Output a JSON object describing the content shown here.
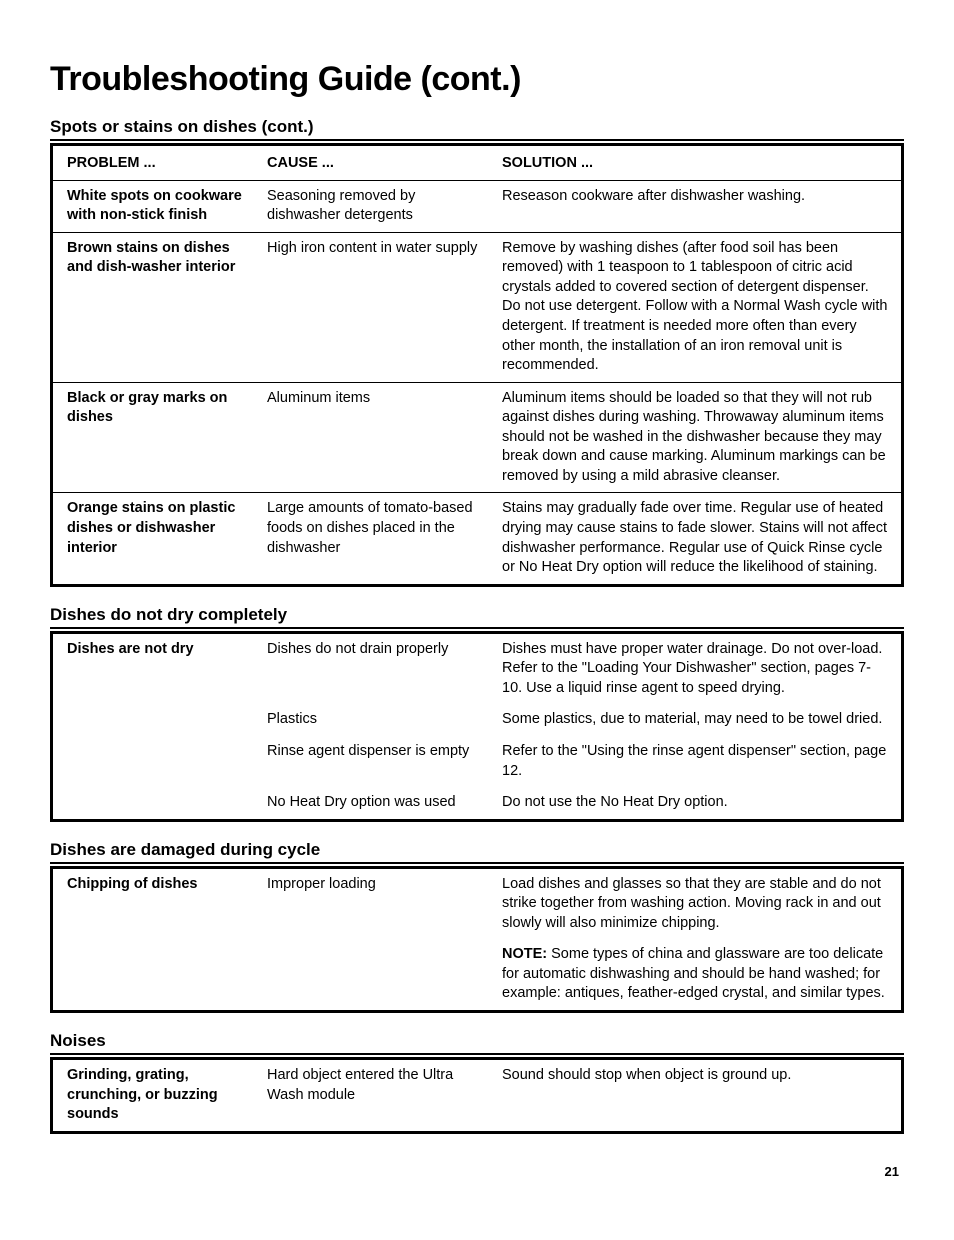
{
  "page": {
    "title": "Troubleshooting Guide (cont.)",
    "page_number": "21",
    "colors": {
      "text": "#000000",
      "background": "#ffffff",
      "border": "#000000"
    },
    "typography": {
      "title_size_pt": 34,
      "section_size_pt": 17,
      "body_size_pt": 14.5,
      "font_family": "Arial"
    }
  },
  "sections": {
    "spots": {
      "heading": "Spots or stains on dishes (cont.)",
      "columns": {
        "problem": "PROBLEM ...",
        "cause": "CAUSE ...",
        "solution": "SOLUTION ..."
      },
      "rows": [
        {
          "problem": "White spots on cookware with non-stick finish",
          "cause": "Seasoning removed by dishwasher detergents",
          "solution": "Reseason cookware after dishwasher washing."
        },
        {
          "problem": "Brown stains on dishes and dish-washer interior",
          "cause": "High iron content in water supply",
          "solution": "Remove by washing dishes (after food soil has been removed) with 1 teaspoon to 1 tablespoon of citric acid crystals added to covered section of detergent dispenser. Do not use detergent. Follow with a Normal Wash cycle with detergent. If treatment is needed more often than every other month, the installation of an iron removal unit is recommended."
        },
        {
          "problem": "Black or gray marks on dishes",
          "cause": "Aluminum items",
          "solution": "Aluminum items should be loaded so that they will not rub against dishes during washing. Throwaway aluminum items should not be washed in the dishwasher because they may break down and cause marking. Aluminum markings can be removed by using a mild abrasive cleanser."
        },
        {
          "problem": "Orange stains on plastic dishes or dishwasher interior",
          "cause": "Large amounts of tomato-based foods on dishes placed in the dishwasher",
          "solution": "Stains may gradually fade over time. Regular use of heated drying may cause stains to fade slower. Stains will not affect dishwasher performance. Regular use of Quick Rinse cycle or No Heat Dry option will reduce the likelihood of staining."
        }
      ]
    },
    "dry": {
      "heading": "Dishes do not dry completely",
      "rows": [
        {
          "problem": "Dishes are not dry",
          "cause": "Dishes do not drain properly",
          "solution": "Dishes must have proper water drainage. Do not over-load. Refer to the \"Loading Your Dishwasher\" section, pages 7-10. Use a liquid rinse agent to speed drying."
        },
        {
          "problem": "",
          "cause": "Plastics",
          "solution": "Some plastics, due to material, may need to be towel dried."
        },
        {
          "problem": "",
          "cause": "Rinse agent dispenser is empty",
          "solution": "Refer to the \"Using the rinse agent dispenser\" section, page 12."
        },
        {
          "problem": "",
          "cause": "No Heat Dry option was used",
          "solution": "Do not use the No Heat Dry option."
        }
      ]
    },
    "damaged": {
      "heading": "Dishes are damaged during cycle",
      "rows": [
        {
          "problem": "Chipping of dishes",
          "cause": "Improper loading",
          "solution": "Load dishes and glasses so that they are stable and do not strike together from washing action. Moving rack in and out slowly will also minimize chipping."
        }
      ],
      "note_label": "NOTE:",
      "note_text": " Some types of china and glassware are too delicate for automatic dishwashing and should be hand washed; for example: antiques, feather-edged crystal, and similar types."
    },
    "noises": {
      "heading": "Noises",
      "rows": [
        {
          "problem": "Grinding, grating, crunching, or buzzing sounds",
          "cause": "Hard object entered the Ultra Wash module",
          "solution": "Sound should stop when object is ground up."
        }
      ]
    }
  }
}
